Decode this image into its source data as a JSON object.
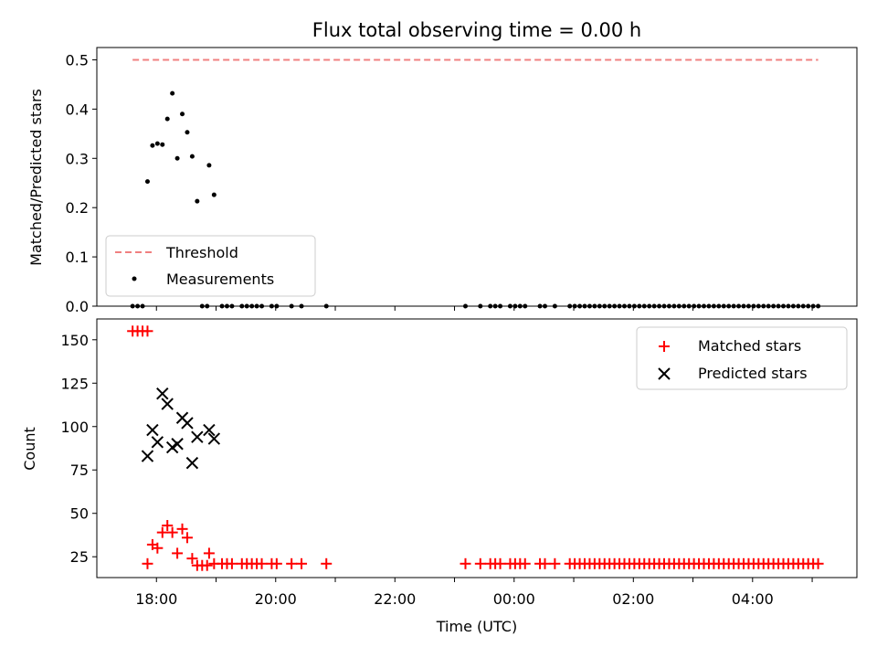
{
  "chart_data": [
    {
      "type": "scatter",
      "title": "Flux total observing time = 0.00 h",
      "xlabel": "",
      "ylabel": "Matched/Predicted stars",
      "xlim": [
        "17:00",
        "05:45"
      ],
      "ylim": [
        0,
        0.525
      ],
      "yticks": [
        0.0,
        0.1,
        0.2,
        0.3,
        0.4,
        0.5
      ],
      "yticklabels": [
        "0.0",
        "0.1",
        "0.2",
        "0.3",
        "0.4",
        "0.5"
      ],
      "legend": "lower-left",
      "series": [
        {
          "name": "Threshold",
          "kind": "dashed-line",
          "color": "#f08080",
          "points": [
            [
              "17:36",
              0.5
            ],
            [
              "05:06",
              0.5
            ]
          ]
        },
        {
          "name": "Measurements",
          "kind": "dots",
          "color": "#000000",
          "points": [
            [
              "17:36",
              0.0
            ],
            [
              "17:41",
              0.0
            ],
            [
              "17:46",
              0.0
            ],
            [
              "17:51",
              0.253
            ],
            [
              "17:56",
              0.326
            ],
            [
              "18:01",
              0.33
            ],
            [
              "18:06",
              0.328
            ],
            [
              "18:11",
              0.38
            ],
            [
              "18:16",
              0.432
            ],
            [
              "18:21",
              0.3
            ],
            [
              "18:26",
              0.39
            ],
            [
              "18:31",
              0.353
            ],
            [
              "18:36",
              0.304
            ],
            [
              "18:41",
              0.213
            ],
            [
              "18:46",
              0.0
            ],
            [
              "18:51",
              0.0
            ],
            [
              "18:53",
              0.286
            ],
            [
              "18:58",
              0.226
            ],
            [
              "19:06",
              0.0
            ],
            [
              "19:11",
              0.0
            ],
            [
              "19:16",
              0.0
            ],
            [
              "19:26",
              0.0
            ],
            [
              "19:31",
              0.0
            ],
            [
              "19:36",
              0.0
            ],
            [
              "19:41",
              0.0
            ],
            [
              "19:46",
              0.0
            ],
            [
              "19:56",
              0.0
            ],
            [
              "20:01",
              0.0
            ],
            [
              "20:16",
              0.0
            ],
            [
              "20:26",
              0.0
            ],
            [
              "20:51",
              0.0
            ],
            [
              "23:11",
              0.0
            ],
            [
              "23:26",
              0.0
            ],
            [
              "23:36",
              0.0
            ],
            [
              "23:41",
              0.0
            ],
            [
              "23:46",
              0.0
            ],
            [
              "23:56",
              0.0
            ],
            [
              "00:01",
              0.0
            ],
            [
              "00:06",
              0.0
            ],
            [
              "00:11",
              0.0
            ],
            [
              "00:26",
              0.0
            ],
            [
              "00:31",
              0.0
            ],
            [
              "00:41",
              0.0
            ],
            [
              "00:56",
              0.0
            ],
            [
              "01:01",
              0.0
            ],
            [
              "01:06",
              0.0
            ],
            [
              "01:11",
              0.0
            ],
            [
              "01:16",
              0.0
            ],
            [
              "01:21",
              0.0
            ],
            [
              "01:26",
              0.0
            ],
            [
              "01:31",
              0.0
            ],
            [
              "01:36",
              0.0
            ],
            [
              "01:41",
              0.0
            ],
            [
              "01:46",
              0.0
            ],
            [
              "01:51",
              0.0
            ],
            [
              "01:56",
              0.0
            ],
            [
              "02:01",
              0.0
            ],
            [
              "02:06",
              0.0
            ],
            [
              "02:11",
              0.0
            ],
            [
              "02:16",
              0.0
            ],
            [
              "02:21",
              0.0
            ],
            [
              "02:26",
              0.0
            ],
            [
              "02:31",
              0.0
            ],
            [
              "02:36",
              0.0
            ],
            [
              "02:41",
              0.0
            ],
            [
              "02:46",
              0.0
            ],
            [
              "02:51",
              0.0
            ],
            [
              "02:56",
              0.0
            ],
            [
              "03:01",
              0.0
            ],
            [
              "03:06",
              0.0
            ],
            [
              "03:11",
              0.0
            ],
            [
              "03:16",
              0.0
            ],
            [
              "03:21",
              0.0
            ],
            [
              "03:26",
              0.0
            ],
            [
              "03:31",
              0.0
            ],
            [
              "03:36",
              0.0
            ],
            [
              "03:41",
              0.0
            ],
            [
              "03:46",
              0.0
            ],
            [
              "03:51",
              0.0
            ],
            [
              "03:56",
              0.0
            ],
            [
              "04:01",
              0.0
            ],
            [
              "04:06",
              0.0
            ],
            [
              "04:11",
              0.0
            ],
            [
              "04:16",
              0.0
            ],
            [
              "04:21",
              0.0
            ],
            [
              "04:26",
              0.0
            ],
            [
              "04:31",
              0.0
            ],
            [
              "04:36",
              0.0
            ],
            [
              "04:41",
              0.0
            ],
            [
              "04:46",
              0.0
            ],
            [
              "04:51",
              0.0
            ],
            [
              "04:56",
              0.0
            ],
            [
              "05:01",
              0.0
            ],
            [
              "05:06",
              0.0
            ]
          ]
        }
      ]
    },
    {
      "type": "scatter",
      "title": "",
      "xlabel": "Time (UTC)",
      "ylabel": "Count",
      "xlim": [
        "17:00",
        "05:45"
      ],
      "ylim": [
        13,
        162
      ],
      "xticks": [
        "18:00",
        "20:00",
        "22:00",
        "00:00",
        "02:00",
        "04:00"
      ],
      "xticklabels": [
        "18:00",
        "20:00",
        "22:00",
        "00:00",
        "02:00",
        "04:00"
      ],
      "yticks": [
        25,
        50,
        75,
        100,
        125,
        150
      ],
      "yticklabels": [
        "25",
        "50",
        "75",
        "100",
        "125",
        "150"
      ],
      "legend": "top-right",
      "series": [
        {
          "name": "Matched stars",
          "kind": "plus",
          "color": "#ff0000",
          "points": [
            [
              "17:36",
              155
            ],
            [
              "17:41",
              155
            ],
            [
              "17:46",
              155
            ],
            [
              "17:51",
              155
            ],
            [
              "17:51",
              21
            ],
            [
              "17:56",
              32
            ],
            [
              "18:01",
              30
            ],
            [
              "18:06",
              39
            ],
            [
              "18:11",
              43
            ],
            [
              "18:16",
              39
            ],
            [
              "18:21",
              27
            ],
            [
              "18:26",
              41
            ],
            [
              "18:31",
              36
            ],
            [
              "18:36",
              24
            ],
            [
              "18:41",
              20
            ],
            [
              "18:46",
              20
            ],
            [
              "18:51",
              20
            ],
            [
              "18:53",
              27
            ],
            [
              "18:58",
              21
            ],
            [
              "19:06",
              21
            ],
            [
              "19:11",
              21
            ],
            [
              "19:16",
              21
            ],
            [
              "19:26",
              21
            ],
            [
              "19:31",
              21
            ],
            [
              "19:36",
              21
            ],
            [
              "19:41",
              21
            ],
            [
              "19:46",
              21
            ],
            [
              "19:56",
              21
            ],
            [
              "20:01",
              21
            ],
            [
              "20:16",
              21
            ],
            [
              "20:26",
              21
            ],
            [
              "20:51",
              21
            ],
            [
              "23:11",
              21
            ],
            [
              "23:26",
              21
            ],
            [
              "23:36",
              21
            ],
            [
              "23:41",
              21
            ],
            [
              "23:46",
              21
            ],
            [
              "23:56",
              21
            ],
            [
              "00:01",
              21
            ],
            [
              "00:06",
              21
            ],
            [
              "00:11",
              21
            ],
            [
              "00:26",
              21
            ],
            [
              "00:31",
              21
            ],
            [
              "00:41",
              21
            ],
            [
              "00:56",
              21
            ],
            [
              "01:01",
              21
            ],
            [
              "01:06",
              21
            ],
            [
              "01:11",
              21
            ],
            [
              "01:16",
              21
            ],
            [
              "01:21",
              21
            ],
            [
              "01:26",
              21
            ],
            [
              "01:31",
              21
            ],
            [
              "01:36",
              21
            ],
            [
              "01:41",
              21
            ],
            [
              "01:46",
              21
            ],
            [
              "01:51",
              21
            ],
            [
              "01:56",
              21
            ],
            [
              "02:01",
              21
            ],
            [
              "02:06",
              21
            ],
            [
              "02:11",
              21
            ],
            [
              "02:16",
              21
            ],
            [
              "02:21",
              21
            ],
            [
              "02:26",
              21
            ],
            [
              "02:31",
              21
            ],
            [
              "02:36",
              21
            ],
            [
              "02:41",
              21
            ],
            [
              "02:46",
              21
            ],
            [
              "02:51",
              21
            ],
            [
              "02:56",
              21
            ],
            [
              "03:01",
              21
            ],
            [
              "03:06",
              21
            ],
            [
              "03:11",
              21
            ],
            [
              "03:16",
              21
            ],
            [
              "03:21",
              21
            ],
            [
              "03:26",
              21
            ],
            [
              "03:31",
              21
            ],
            [
              "03:36",
              21
            ],
            [
              "03:41",
              21
            ],
            [
              "03:46",
              21
            ],
            [
              "03:51",
              21
            ],
            [
              "03:56",
              21
            ],
            [
              "04:01",
              21
            ],
            [
              "04:06",
              21
            ],
            [
              "04:11",
              21
            ],
            [
              "04:16",
              21
            ],
            [
              "04:21",
              21
            ],
            [
              "04:26",
              21
            ],
            [
              "04:31",
              21
            ],
            [
              "04:36",
              21
            ],
            [
              "04:41",
              21
            ],
            [
              "04:46",
              21
            ],
            [
              "04:51",
              21
            ],
            [
              "04:56",
              21
            ],
            [
              "05:01",
              21
            ],
            [
              "05:06",
              21
            ]
          ]
        },
        {
          "name": "Predicted stars",
          "kind": "x",
          "color": "#000000",
          "points": [
            [
              "17:51",
              83
            ],
            [
              "17:56",
              98
            ],
            [
              "18:01",
              91
            ],
            [
              "18:06",
              119
            ],
            [
              "18:11",
              113
            ],
            [
              "18:16",
              88
            ],
            [
              "18:21",
              90
            ],
            [
              "18:26",
              105
            ],
            [
              "18:31",
              102
            ],
            [
              "18:36",
              79
            ],
            [
              "18:41",
              94
            ],
            [
              "18:53",
              98
            ],
            [
              "18:58",
              93
            ]
          ]
        }
      ]
    }
  ]
}
